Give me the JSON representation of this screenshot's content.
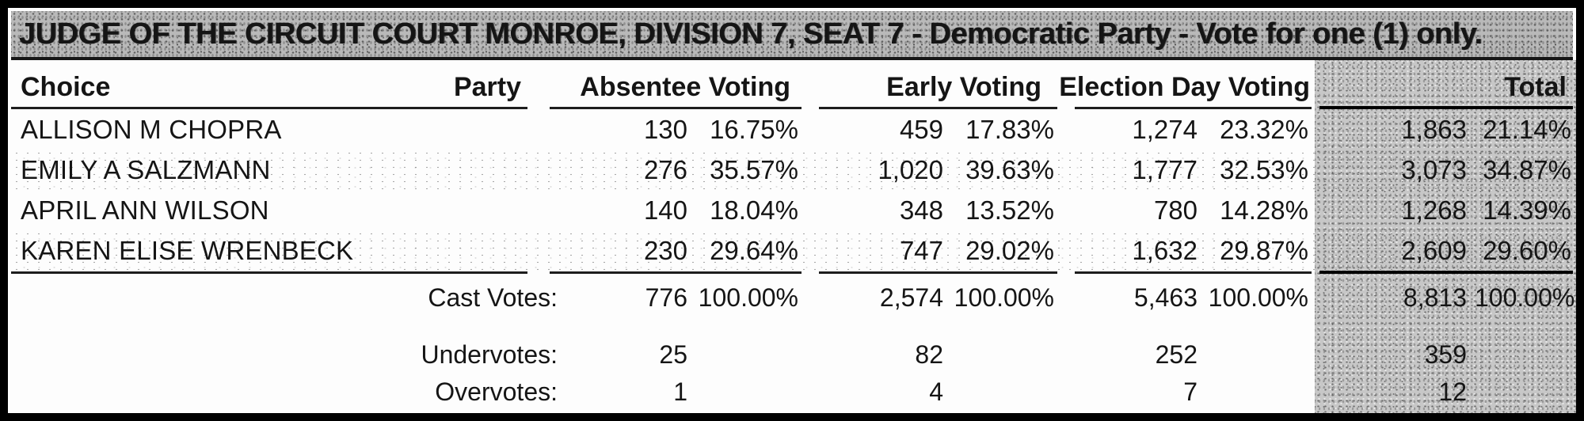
{
  "title": "JUDGE OF THE CIRCUIT COURT MONROE, DIVISION 7, SEAT 7 - Democratic Party - Vote for one (1) only.",
  "headers": {
    "choice": "Choice",
    "party": "Party",
    "absentee": "Absentee Voting",
    "early": "Early Voting",
    "election_day": "Election Day Voting",
    "total": "Total"
  },
  "candidates": [
    {
      "name": "ALLISON M CHOPRA",
      "absentee": "130",
      "absentee_pct": "16.75%",
      "early": "459",
      "early_pct": "17.83%",
      "election_day": "1,274",
      "election_day_pct": "23.32%",
      "total": "1,863",
      "total_pct": "21.14%"
    },
    {
      "name": "EMILY A SALZMANN",
      "absentee": "276",
      "absentee_pct": "35.57%",
      "early": "1,020",
      "early_pct": "39.63%",
      "election_day": "1,777",
      "election_day_pct": "32.53%",
      "total": "3,073",
      "total_pct": "34.87%"
    },
    {
      "name": "APRIL ANN WILSON",
      "absentee": "140",
      "absentee_pct": "18.04%",
      "early": "348",
      "early_pct": "13.52%",
      "election_day": "780",
      "election_day_pct": "14.28%",
      "total": "1,268",
      "total_pct": "14.39%"
    },
    {
      "name": "KAREN ELISE WRENBECK",
      "absentee": "230",
      "absentee_pct": "29.64%",
      "early": "747",
      "early_pct": "29.02%",
      "election_day": "1,632",
      "election_day_pct": "29.87%",
      "total": "2,609",
      "total_pct": "29.60%"
    }
  ],
  "summary": {
    "cast": {
      "label": "Cast Votes:",
      "absentee": "776",
      "absentee_pct": "100.00%",
      "early": "2,574",
      "early_pct": "100.00%",
      "election_day": "5,463",
      "election_day_pct": "100.00%",
      "total": "8,813",
      "total_pct": "100.00%"
    },
    "under": {
      "label": "Undervotes:",
      "absentee": "25",
      "early": "82",
      "election_day": "252",
      "total": "359"
    },
    "over": {
      "label": "Overvotes:",
      "absentee": "1",
      "early": "4",
      "election_day": "7",
      "total": "12"
    }
  },
  "colors": {
    "ink": "#151515",
    "paper": "#fdfdfd",
    "border": "#000000",
    "title_shade": "#b9b9b9",
    "total_column_shade": "#c7c7c7"
  }
}
